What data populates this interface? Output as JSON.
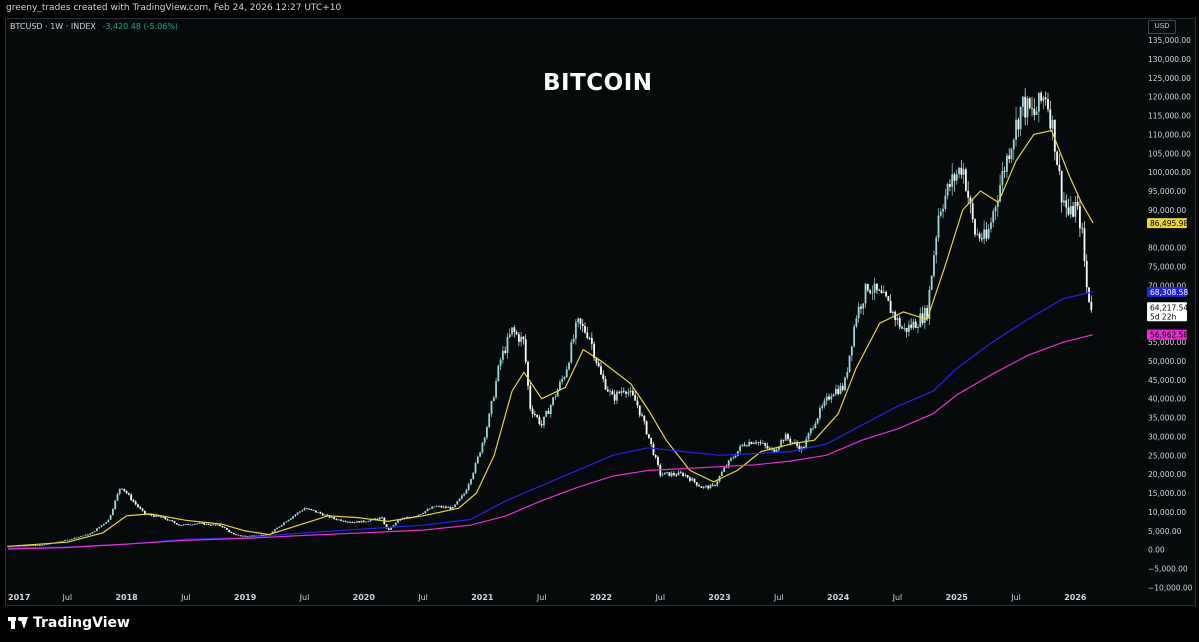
{
  "header": {
    "attribution": "greeny_trades created with TradingView.com, Feb 24, 2026 12:27 UTC+10"
  },
  "legend": {
    "symbol": "BTCUSD · 1W · INDEX",
    "change": "-3,420.48 (-5.06%)"
  },
  "currency": "USD",
  "footer": {
    "brand": "TradingView"
  },
  "colors": {
    "up": "#26a69a",
    "down": "#ffffff",
    "candle": "#9fd4d8",
    "ma_fast": "#e8d43a",
    "ma_mid": "#2424e8",
    "ma_slow": "#e62fd0"
  },
  "chart_data": {
    "type": "line",
    "title": "BITCOIN",
    "x_axis": {
      "start": 2017.0,
      "end": 2026.25,
      "ticks": [
        {
          "t": 2017.0,
          "label": "2017",
          "year": true
        },
        {
          "t": 2017.5,
          "label": "Jul",
          "year": false
        },
        {
          "t": 2018.0,
          "label": "2018",
          "year": true
        },
        {
          "t": 2018.5,
          "label": "Jul",
          "year": false
        },
        {
          "t": 2019.0,
          "label": "2019",
          "year": true
        },
        {
          "t": 2019.5,
          "label": "Jul",
          "year": false
        },
        {
          "t": 2020.0,
          "label": "2020",
          "year": true
        },
        {
          "t": 2020.5,
          "label": "Jul",
          "year": false
        },
        {
          "t": 2021.0,
          "label": "2021",
          "year": true
        },
        {
          "t": 2021.5,
          "label": "Jul",
          "year": false
        },
        {
          "t": 2022.0,
          "label": "2022",
          "year": true
        },
        {
          "t": 2022.5,
          "label": "Jul",
          "year": false
        },
        {
          "t": 2023.0,
          "label": "2023",
          "year": true
        },
        {
          "t": 2023.5,
          "label": "Jul",
          "year": false
        },
        {
          "t": 2024.0,
          "label": "2024",
          "year": true
        },
        {
          "t": 2024.5,
          "label": "Jul",
          "year": false
        },
        {
          "t": 2025.0,
          "label": "2025",
          "year": true
        },
        {
          "t": 2025.5,
          "label": "Jul",
          "year": false
        },
        {
          "t": 2026.0,
          "label": "2026",
          "year": true
        }
      ]
    },
    "y_axis": {
      "min": -10000,
      "max": 135000,
      "ticks": [
        {
          "v": 135000,
          "label": "135,000.00"
        },
        {
          "v": 130000,
          "label": "130,000.00"
        },
        {
          "v": 125000,
          "label": "125,000.00"
        },
        {
          "v": 120000,
          "label": "120,000.00"
        },
        {
          "v": 115000,
          "label": "115,000.00"
        },
        {
          "v": 110000,
          "label": "110,000.00"
        },
        {
          "v": 105000,
          "label": "105,000.00"
        },
        {
          "v": 100000,
          "label": "100,000.00"
        },
        {
          "v": 95000,
          "label": "95,000.00"
        },
        {
          "v": 90000,
          "label": "90,000.00"
        },
        {
          "v": 80000,
          "label": "80,000.00"
        },
        {
          "v": 75000,
          "label": "75,000.00"
        },
        {
          "v": 70000,
          "label": "70,000.00"
        },
        {
          "v": 55000,
          "label": "55,000.00"
        },
        {
          "v": 50000,
          "label": "50,000.00"
        },
        {
          "v": 45000,
          "label": "45,000.00"
        },
        {
          "v": 40000,
          "label": "40,000.00"
        },
        {
          "v": 35000,
          "label": "35,000.00"
        },
        {
          "v": 30000,
          "label": "30,000.00"
        },
        {
          "v": 25000,
          "label": "25,000.00"
        },
        {
          "v": 20000,
          "label": "20,000.00"
        },
        {
          "v": 15000,
          "label": "15,000.00"
        },
        {
          "v": 10000,
          "label": "10,000.00"
        },
        {
          "v": 5000,
          "label": "5,000.00"
        },
        {
          "v": 0,
          "label": "0.00"
        },
        {
          "v": -5000,
          "label": "−5,000.00"
        },
        {
          "v": -10000,
          "label": "−10,000.00"
        }
      ]
    },
    "price_labels": [
      {
        "v": 86495.98,
        "label": "86,495.98",
        "bg": "#e8d43a",
        "fg": "#000000"
      },
      {
        "v": 68308.58,
        "label": "68,308.58",
        "bg": "#2424e8",
        "fg": "#ffffff"
      },
      {
        "v": 64217.54,
        "label": "64,217.54",
        "sub": "5d 22h",
        "bg": "#ffffff",
        "fg": "#000000"
      },
      {
        "v": 56962.58,
        "label": "56,962.58",
        "bg": "#e62fd0",
        "fg": "#000000"
      }
    ],
    "series": [
      {
        "key": "price",
        "style": "candles",
        "points": [
          [
            2017.0,
            1000
          ],
          [
            2017.3,
            1300
          ],
          [
            2017.5,
            2600
          ],
          [
            2017.7,
            4300
          ],
          [
            2017.85,
            8000
          ],
          [
            2017.95,
            17000
          ],
          [
            2018.05,
            13000
          ],
          [
            2018.15,
            9500
          ],
          [
            2018.3,
            8500
          ],
          [
            2018.45,
            6500
          ],
          [
            2018.6,
            7000
          ],
          [
            2018.8,
            6300
          ],
          [
            2018.9,
            4000
          ],
          [
            2019.0,
            3600
          ],
          [
            2019.2,
            4000
          ],
          [
            2019.35,
            7800
          ],
          [
            2019.5,
            11000
          ],
          [
            2019.6,
            10000
          ],
          [
            2019.75,
            8200
          ],
          [
            2019.9,
            7300
          ],
          [
            2020.0,
            7500
          ],
          [
            2020.15,
            8500
          ],
          [
            2020.2,
            5000
          ],
          [
            2020.3,
            8000
          ],
          [
            2020.45,
            9200
          ],
          [
            2020.6,
            11500
          ],
          [
            2020.75,
            11000
          ],
          [
            2020.85,
            15000
          ],
          [
            2020.95,
            23000
          ],
          [
            2021.05,
            34000
          ],
          [
            2021.15,
            50000
          ],
          [
            2021.25,
            58000
          ],
          [
            2021.35,
            55000
          ],
          [
            2021.4,
            38000
          ],
          [
            2021.5,
            33000
          ],
          [
            2021.6,
            40000
          ],
          [
            2021.7,
            47000
          ],
          [
            2021.8,
            60000
          ],
          [
            2021.9,
            57000
          ],
          [
            2022.0,
            46000
          ],
          [
            2022.1,
            40000
          ],
          [
            2022.2,
            43000
          ],
          [
            2022.3,
            39000
          ],
          [
            2022.4,
            30000
          ],
          [
            2022.5,
            20000
          ],
          [
            2022.7,
            20000
          ],
          [
            2022.85,
            16500
          ],
          [
            2022.95,
            16800
          ],
          [
            2023.05,
            22000
          ],
          [
            2023.2,
            28000
          ],
          [
            2023.3,
            29000
          ],
          [
            2023.45,
            26000
          ],
          [
            2023.55,
            30000
          ],
          [
            2023.7,
            26500
          ],
          [
            2023.8,
            34000
          ],
          [
            2023.95,
            42000
          ],
          [
            2024.05,
            43000
          ],
          [
            2024.15,
            62000
          ],
          [
            2024.25,
            70000
          ],
          [
            2024.4,
            66000
          ],
          [
            2024.55,
            58000
          ],
          [
            2024.65,
            60000
          ],
          [
            2024.75,
            63000
          ],
          [
            2024.85,
            90000
          ],
          [
            2024.95,
            97000
          ],
          [
            2025.05,
            102000
          ],
          [
            2025.15,
            84000
          ],
          [
            2025.25,
            82000
          ],
          [
            2025.35,
            95000
          ],
          [
            2025.45,
            107000
          ],
          [
            2025.55,
            118000
          ],
          [
            2025.65,
            115000
          ],
          [
            2025.75,
            121000
          ],
          [
            2025.82,
            110000
          ],
          [
            2025.88,
            95000
          ],
          [
            2025.95,
            88000
          ],
          [
            2026.0,
            91000
          ],
          [
            2026.05,
            86000
          ],
          [
            2026.1,
            68000
          ],
          [
            2026.14,
            64217
          ]
        ]
      },
      {
        "key": "ma_fast",
        "style": "line",
        "color": "#e8d43a",
        "points": [
          [
            2017.0,
            900
          ],
          [
            2017.5,
            2000
          ],
          [
            2017.8,
            4500
          ],
          [
            2018.0,
            9000
          ],
          [
            2018.2,
            9500
          ],
          [
            2018.5,
            7800
          ],
          [
            2018.8,
            6800
          ],
          [
            2019.0,
            5000
          ],
          [
            2019.2,
            4000
          ],
          [
            2019.45,
            6500
          ],
          [
            2019.7,
            9000
          ],
          [
            2019.95,
            8500
          ],
          [
            2020.2,
            7500
          ],
          [
            2020.5,
            9000
          ],
          [
            2020.8,
            11000
          ],
          [
            2020.95,
            15000
          ],
          [
            2021.1,
            25000
          ],
          [
            2021.25,
            42000
          ],
          [
            2021.35,
            47000
          ],
          [
            2021.5,
            40000
          ],
          [
            2021.7,
            43000
          ],
          [
            2021.85,
            53000
          ],
          [
            2022.0,
            50000
          ],
          [
            2022.25,
            44000
          ],
          [
            2022.4,
            37000
          ],
          [
            2022.55,
            29000
          ],
          [
            2022.75,
            21000
          ],
          [
            2022.95,
            18000
          ],
          [
            2023.15,
            21000
          ],
          [
            2023.35,
            26000
          ],
          [
            2023.6,
            28000
          ],
          [
            2023.8,
            29000
          ],
          [
            2024.0,
            36000
          ],
          [
            2024.15,
            48000
          ],
          [
            2024.35,
            60000
          ],
          [
            2024.55,
            63000
          ],
          [
            2024.75,
            61000
          ],
          [
            2024.9,
            75000
          ],
          [
            2025.05,
            90000
          ],
          [
            2025.2,
            95000
          ],
          [
            2025.35,
            92000
          ],
          [
            2025.5,
            103000
          ],
          [
            2025.65,
            110000
          ],
          [
            2025.8,
            111000
          ],
          [
            2025.95,
            99000
          ],
          [
            2026.05,
            92000
          ],
          [
            2026.15,
            86496
          ]
        ]
      },
      {
        "key": "ma_mid",
        "style": "line",
        "color": "#2424e8",
        "points": [
          [
            2017.0,
            500
          ],
          [
            2017.5,
            700
          ],
          [
            2018.0,
            1500
          ],
          [
            2018.5,
            2800
          ],
          [
            2019.0,
            3200
          ],
          [
            2019.5,
            4500
          ],
          [
            2020.0,
            5500
          ],
          [
            2020.5,
            6500
          ],
          [
            2020.9,
            8000
          ],
          [
            2021.2,
            13000
          ],
          [
            2021.5,
            17000
          ],
          [
            2021.8,
            21000
          ],
          [
            2022.1,
            25000
          ],
          [
            2022.4,
            27000
          ],
          [
            2022.7,
            26000
          ],
          [
            2023.0,
            25000
          ],
          [
            2023.3,
            25500
          ],
          [
            2023.6,
            26000
          ],
          [
            2023.9,
            28000
          ],
          [
            2024.2,
            33000
          ],
          [
            2024.5,
            38000
          ],
          [
            2024.8,
            42000
          ],
          [
            2025.0,
            48000
          ],
          [
            2025.3,
            55000
          ],
          [
            2025.6,
            61000
          ],
          [
            2025.9,
            66500
          ],
          [
            2026.15,
            68309
          ]
        ]
      },
      {
        "key": "ma_slow",
        "style": "line",
        "color": "#e62fd0",
        "points": [
          [
            2017.0,
            200
          ],
          [
            2017.5,
            600
          ],
          [
            2018.0,
            1500
          ],
          [
            2018.5,
            2500
          ],
          [
            2019.0,
            3000
          ],
          [
            2019.5,
            3800
          ],
          [
            2020.0,
            4500
          ],
          [
            2020.5,
            5200
          ],
          [
            2020.9,
            6500
          ],
          [
            2021.2,
            9000
          ],
          [
            2021.5,
            13000
          ],
          [
            2021.8,
            16500
          ],
          [
            2022.1,
            19500
          ],
          [
            2022.4,
            21000
          ],
          [
            2022.7,
            21500
          ],
          [
            2023.0,
            22000
          ],
          [
            2023.3,
            22500
          ],
          [
            2023.6,
            23500
          ],
          [
            2023.9,
            25000
          ],
          [
            2024.2,
            29000
          ],
          [
            2024.5,
            32000
          ],
          [
            2024.8,
            36000
          ],
          [
            2025.0,
            41000
          ],
          [
            2025.3,
            46500
          ],
          [
            2025.6,
            51500
          ],
          [
            2025.9,
            55000
          ],
          [
            2026.15,
            56963
          ]
        ]
      }
    ]
  }
}
